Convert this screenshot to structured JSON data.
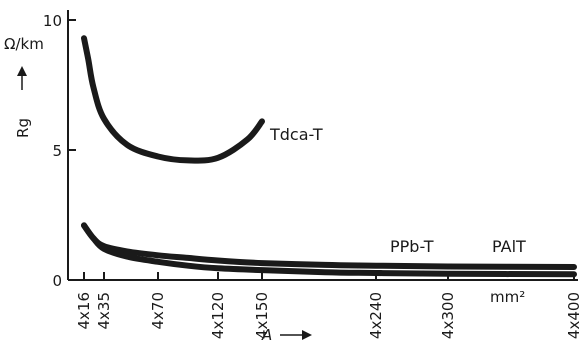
{
  "chart_data": {
    "type": "line",
    "x_ticks": [
      "4x16",
      "4x35",
      "4x70",
      "4x120",
      "4x150",
      "4x240",
      "4x300",
      "4x400"
    ],
    "y_ticks": [
      0,
      5,
      10
    ],
    "ylim": [
      0,
      10
    ],
    "y_unit": "Ω/km",
    "y_symbol": "Rg",
    "x_symbol": "A",
    "x_unit": "mm²",
    "grid": false,
    "series": [
      {
        "name": "Tdca-T",
        "points": [
          [
            16,
            9.3
          ],
          [
            20,
            8.5
          ],
          [
            25,
            7.4
          ],
          [
            35,
            6.2
          ],
          [
            50,
            5.2
          ],
          [
            70,
            4.75
          ],
          [
            95,
            4.6
          ],
          [
            120,
            4.7
          ],
          [
            140,
            5.4
          ],
          [
            150,
            6.1
          ]
        ]
      },
      {
        "name": "PPb-T",
        "points": [
          [
            16,
            2.1
          ],
          [
            25,
            1.6
          ],
          [
            35,
            1.3
          ],
          [
            50,
            1.1
          ],
          [
            70,
            0.95
          ],
          [
            95,
            0.85
          ],
          [
            120,
            0.75
          ],
          [
            150,
            0.65
          ],
          [
            200,
            0.58
          ],
          [
            240,
            0.55
          ],
          [
            300,
            0.52
          ],
          [
            400,
            0.5
          ]
        ]
      },
      {
        "name": "PAlT",
        "points": [
          [
            16,
            2.1
          ],
          [
            25,
            1.6
          ],
          [
            35,
            1.2
          ],
          [
            50,
            0.9
          ],
          [
            70,
            0.7
          ],
          [
            95,
            0.55
          ],
          [
            120,
            0.45
          ],
          [
            150,
            0.38
          ],
          [
            200,
            0.3
          ],
          [
            240,
            0.27
          ],
          [
            300,
            0.24
          ],
          [
            400,
            0.22
          ]
        ]
      }
    ]
  }
}
